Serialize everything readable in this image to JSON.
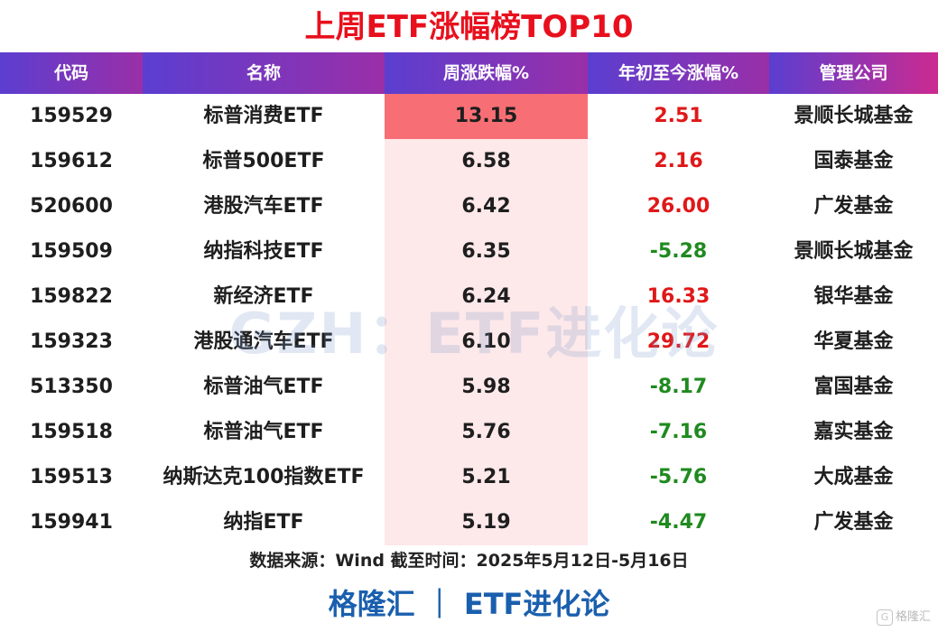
{
  "title": "上周ETF涨幅榜TOP10",
  "headers": [
    "代码",
    "名称",
    "周涨跌幅%",
    "年初至今涨幅%",
    "管理公司"
  ],
  "colors": {
    "up": "#e01818",
    "down": "#1f8a1f",
    "bar_max": "#f76f74",
    "bar_bg": "#fde8ea"
  },
  "watermark": "GZH：ETF进化论",
  "source": "数据来源：Wind 截至时间：2025年5月12日-5月16日",
  "footer": "格隆汇 ｜ ETF进化论",
  "logo_text": "格隆汇",
  "chart_data": {
    "type": "table",
    "title": "上周ETF涨幅榜TOP10",
    "columns": [
      "代码",
      "名称",
      "周涨跌幅%",
      "年初至今涨幅%",
      "管理公司"
    ],
    "rows": [
      {
        "code": "159529",
        "name": "标普消费ETF",
        "weekly": "13.15",
        "ytd": "2.51",
        "company": "景顺长城基金"
      },
      {
        "code": "159612",
        "name": "标普500ETF",
        "weekly": "6.58",
        "ytd": "2.16",
        "company": "国泰基金"
      },
      {
        "code": "520600",
        "name": "港股汽车ETF",
        "weekly": "6.42",
        "ytd": "26.00",
        "company": "广发基金"
      },
      {
        "code": "159509",
        "name": "纳指科技ETF",
        "weekly": "6.35",
        "ytd": "-5.28",
        "company": "景顺长城基金"
      },
      {
        "code": "159822",
        "name": "新经济ETF",
        "weekly": "6.24",
        "ytd": "16.33",
        "company": "银华基金"
      },
      {
        "code": "159323",
        "name": "港股通汽车ETF",
        "weekly": "6.10",
        "ytd": "29.72",
        "company": "华夏基金"
      },
      {
        "code": "513350",
        "name": "标普油气ETF",
        "weekly": "5.98",
        "ytd": "-8.17",
        "company": "富国基金"
      },
      {
        "code": "159518",
        "name": "标普油气ETF",
        "weekly": "5.76",
        "ytd": "-7.16",
        "company": "嘉实基金"
      },
      {
        "code": "159513",
        "name": "纳斯达克100指数ETF",
        "weekly": "5.21",
        "ytd": "-5.76",
        "company": "大成基金"
      },
      {
        "code": "159941",
        "name": "纳指ETF",
        "weekly": "5.19",
        "ytd": "-4.47",
        "company": "广发基金"
      }
    ]
  }
}
